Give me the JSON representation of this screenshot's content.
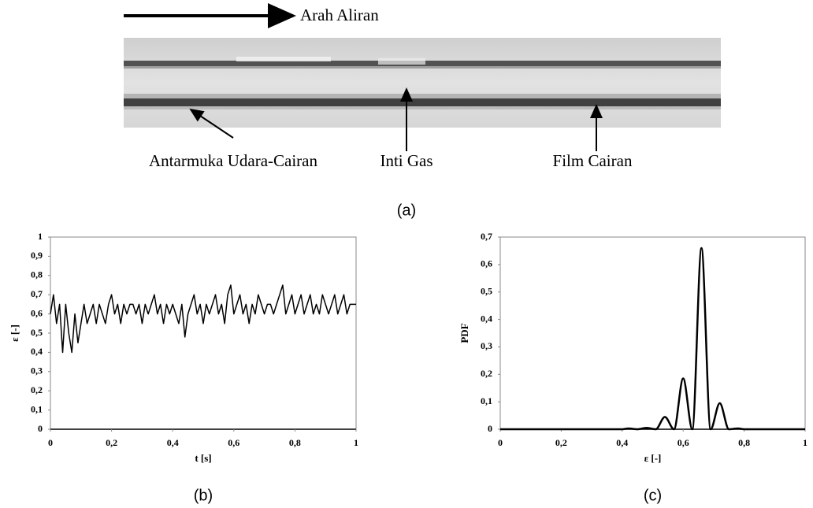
{
  "figure": {
    "flow_label": "Arah Aliran",
    "annotations": [
      "Antarmuka Udara-Cairan",
      "Inti Gas",
      "Film Cairan"
    ],
    "panel_label": "(a)"
  },
  "chart_data": [
    {
      "type": "line",
      "x_label": "t [s]",
      "y_label": "ε [-]",
      "panel_label": "(b)",
      "color": "#000000",
      "smooth": false,
      "x": [
        0,
        0.01,
        0.02,
        0.03,
        0.04,
        0.05,
        0.06,
        0.07,
        0.08,
        0.09,
        0.1,
        0.11,
        0.12,
        0.13,
        0.14,
        0.15,
        0.16,
        0.17,
        0.18,
        0.19,
        0.2,
        0.21,
        0.22,
        0.23,
        0.24,
        0.25,
        0.26,
        0.27,
        0.28,
        0.29,
        0.3,
        0.31,
        0.32,
        0.33,
        0.34,
        0.35,
        0.36,
        0.37,
        0.38,
        0.39,
        0.4,
        0.41,
        0.42,
        0.43,
        0.44,
        0.45,
        0.46,
        0.47,
        0.48,
        0.49,
        0.5,
        0.51,
        0.52,
        0.53,
        0.54,
        0.55,
        0.56,
        0.57,
        0.58,
        0.59,
        0.6,
        0.61,
        0.62,
        0.63,
        0.64,
        0.65,
        0.66,
        0.67,
        0.68,
        0.69,
        0.7,
        0.71,
        0.72,
        0.73,
        0.74,
        0.75,
        0.76,
        0.77,
        0.78,
        0.79,
        0.8,
        0.81,
        0.82,
        0.83,
        0.84,
        0.85,
        0.86,
        0.87,
        0.88,
        0.89,
        0.9,
        0.91,
        0.92,
        0.93,
        0.94,
        0.95,
        0.96,
        0.97,
        0.98,
        0.99,
        1
      ],
      "values": [
        0.6,
        0.7,
        0.55,
        0.65,
        0.4,
        0.65,
        0.5,
        0.4,
        0.6,
        0.45,
        0.55,
        0.65,
        0.55,
        0.6,
        0.65,
        0.55,
        0.65,
        0.6,
        0.55,
        0.65,
        0.7,
        0.6,
        0.65,
        0.55,
        0.65,
        0.6,
        0.65,
        0.65,
        0.6,
        0.65,
        0.55,
        0.65,
        0.6,
        0.65,
        0.7,
        0.6,
        0.65,
        0.55,
        0.65,
        0.6,
        0.65,
        0.6,
        0.55,
        0.65,
        0.48,
        0.6,
        0.65,
        0.7,
        0.6,
        0.65,
        0.55,
        0.65,
        0.6,
        0.65,
        0.7,
        0.6,
        0.65,
        0.55,
        0.7,
        0.75,
        0.6,
        0.65,
        0.7,
        0.6,
        0.65,
        0.55,
        0.65,
        0.6,
        0.7,
        0.65,
        0.6,
        0.65,
        0.65,
        0.6,
        0.65,
        0.7,
        0.75,
        0.6,
        0.65,
        0.7,
        0.6,
        0.65,
        0.7,
        0.6,
        0.65,
        0.7,
        0.6,
        0.65,
        0.6,
        0.7,
        0.65,
        0.6,
        0.65,
        0.7,
        0.6,
        0.65,
        0.7,
        0.6,
        0.65,
        0.65,
        0.65
      ],
      "xlim": [
        0,
        1
      ],
      "ylim": [
        0,
        1
      ],
      "xticks": [
        0,
        {
          "value": 0.2,
          "label": "0,2"
        },
        {
          "value": 0.4,
          "label": "0,4"
        },
        {
          "value": 0.6,
          "label": "0,6"
        },
        {
          "value": 0.8,
          "label": "0,8"
        },
        1
      ],
      "yticks": [
        0,
        {
          "value": 0.1,
          "label": "0,1"
        },
        {
          "value": 0.2,
          "label": "0,2"
        },
        {
          "value": 0.3,
          "label": "0,3"
        },
        {
          "value": 0.4,
          "label": "0,4"
        },
        {
          "value": 0.5,
          "label": "0,5"
        },
        {
          "value": 0.6,
          "label": "0,6"
        },
        {
          "value": 0.7,
          "label": "0,7"
        },
        {
          "value": 0.8,
          "label": "0,8"
        },
        {
          "value": 0.9,
          "label": "0,9"
        },
        1
      ]
    },
    {
      "type": "line",
      "x_label": "ε [-]",
      "y_label": "PDF",
      "panel_label": "(c)",
      "color": "#000000",
      "smooth": true,
      "x": [
        0,
        0.4,
        0.42,
        0.45,
        0.48,
        0.51,
        0.54,
        0.57,
        0.6,
        0.63,
        0.66,
        0.69,
        0.72,
        0.75,
        0.78,
        0.8,
        1
      ],
      "values": [
        0,
        0,
        0.003,
        0,
        0.005,
        0,
        0.045,
        0,
        0.185,
        0,
        0.66,
        0,
        0.095,
        0,
        0.003,
        0,
        0
      ],
      "xlim": [
        0,
        1
      ],
      "ylim": [
        0,
        0.7
      ],
      "xticks": [
        0,
        {
          "value": 0.2,
          "label": "0,2"
        },
        {
          "value": 0.4,
          "label": "0,4"
        },
        {
          "value": 0.6,
          "label": "0,6"
        },
        {
          "value": 0.8,
          "label": "0,8"
        },
        1
      ],
      "yticks": [
        0,
        {
          "value": 0.1,
          "label": "0,1"
        },
        {
          "value": 0.2,
          "label": "0,2"
        },
        {
          "value": 0.3,
          "label": "0,3"
        },
        {
          "value": 0.4,
          "label": "0,4"
        },
        {
          "value": 0.5,
          "label": "0,5"
        },
        {
          "value": 0.6,
          "label": "0,6"
        },
        {
          "value": 0.7,
          "label": "0,7"
        }
      ]
    }
  ]
}
